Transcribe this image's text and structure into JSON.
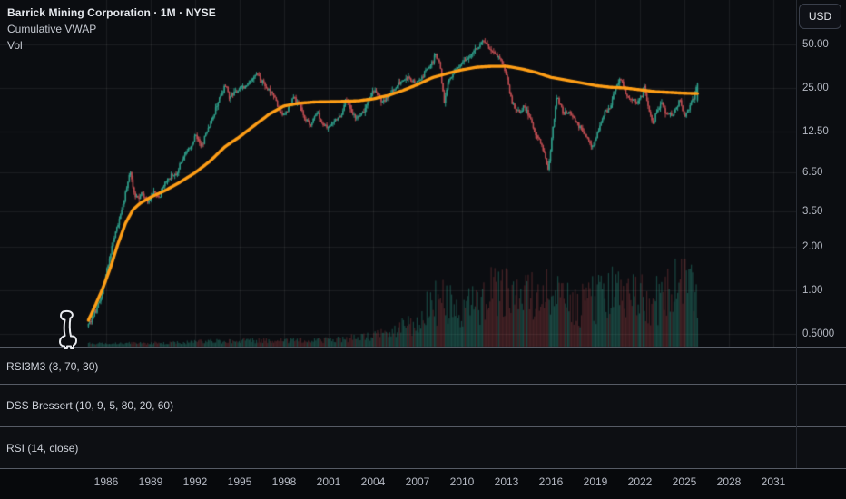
{
  "header": {
    "symbol_title": "Barrick Mining Corporation · 1M · NYSE",
    "legend_lines": [
      "Cumulative VWAP",
      "Vol"
    ]
  },
  "price_axis": {
    "currency_label": "USD",
    "ticks": [
      {
        "text": "50.00",
        "value": 50
      },
      {
        "text": "25.00",
        "value": 25
      },
      {
        "text": "12.50",
        "value": 12.5
      },
      {
        "text": "6.50",
        "value": 6.5
      },
      {
        "text": "3.50",
        "value": 3.5
      },
      {
        "text": "2.00",
        "value": 2
      },
      {
        "text": "1.00",
        "value": 1
      },
      {
        "text": "0.5000",
        "value": 0.5
      }
    ]
  },
  "time_axis": {
    "ticks": [
      1986,
      1989,
      1992,
      1995,
      1998,
      2001,
      2004,
      2007,
      2010,
      2013,
      2016,
      2019,
      2022,
      2025,
      2028,
      2031
    ]
  },
  "indicator_panes": [
    {
      "label": "RSI3M3 (3, 70, 30)"
    },
    {
      "label": "DSS Bressert (10, 9, 5, 80, 20, 60)"
    },
    {
      "label": "RSI (14, close)"
    }
  ],
  "colors": {
    "background": "#0b0d11",
    "grid": "rgba(255,255,255,0.07)",
    "up": "#2f9e8a",
    "down": "#bf4d52",
    "vwap": "#ff9e16",
    "volume_up": "rgba(47,158,138,0.40)",
    "volume_down": "rgba(191,77,82,0.32)"
  },
  "chart_data": {
    "type": "candlestick",
    "title": "Barrick Mining Corporation · 1M · NYSE",
    "ylabel": "USD",
    "scale": "log",
    "interval": "1M",
    "x_range": [
      1984.6,
      2031.6
    ],
    "x_ticks": [
      1986,
      1989,
      1992,
      1995,
      1998,
      2001,
      2004,
      2007,
      2010,
      2013,
      2016,
      2019,
      2022,
      2025,
      2028,
      2031
    ],
    "y_ticks": [
      50,
      25,
      12.5,
      6.5,
      3.5,
      2,
      1,
      0.5
    ],
    "data_start_year": 1984.8,
    "data_end_year": 2025.85,
    "series": [
      {
        "name": "Price close anchors (year, USD)",
        "type": "candlestick",
        "points": [
          [
            1984.8,
            0.58
          ],
          [
            1985.1,
            0.66
          ],
          [
            1985.4,
            0.75
          ],
          [
            1985.7,
            0.95
          ],
          [
            1986.0,
            1.3
          ],
          [
            1986.3,
            1.8
          ],
          [
            1986.6,
            2.5
          ],
          [
            1987.0,
            3.4
          ],
          [
            1987.3,
            4.6
          ],
          [
            1987.6,
            7.0
          ],
          [
            1987.8,
            5.0
          ],
          [
            1988.0,
            4.2
          ],
          [
            1988.4,
            4.7
          ],
          [
            1988.8,
            4.1
          ],
          [
            1989.2,
            4.8
          ],
          [
            1989.6,
            4.4
          ],
          [
            1990.0,
            5.5
          ],
          [
            1990.4,
            6.2
          ],
          [
            1990.8,
            6.8
          ],
          [
            1991.2,
            8.6
          ],
          [
            1991.7,
            9.8
          ],
          [
            1992.0,
            11.8
          ],
          [
            1992.4,
            10.0
          ],
          [
            1992.8,
            12.5
          ],
          [
            1993.2,
            16.0
          ],
          [
            1993.6,
            21.0
          ],
          [
            1994.0,
            26.0
          ],
          [
            1994.3,
            21.5
          ],
          [
            1994.8,
            23.5
          ],
          [
            1995.2,
            25.0
          ],
          [
            1995.7,
            27.5
          ],
          [
            1996.1,
            31.5
          ],
          [
            1996.4,
            28.0
          ],
          [
            1996.8,
            25.0
          ],
          [
            1997.2,
            22.5
          ],
          [
            1997.6,
            18.5
          ],
          [
            1997.9,
            15.5
          ],
          [
            1998.2,
            17.5
          ],
          [
            1998.6,
            21.5
          ],
          [
            1999.0,
            19.5
          ],
          [
            1999.4,
            15.5
          ],
          [
            1999.8,
            13.8
          ],
          [
            2000.2,
            17.0
          ],
          [
            2000.6,
            14.0
          ],
          [
            2001.0,
            12.8
          ],
          [
            2001.4,
            14.5
          ],
          [
            2001.8,
            16.0
          ],
          [
            2002.2,
            20.5
          ],
          [
            2002.6,
            16.5
          ],
          [
            2003.0,
            15.2
          ],
          [
            2003.4,
            17.5
          ],
          [
            2003.8,
            21.5
          ],
          [
            2004.2,
            23.5
          ],
          [
            2004.6,
            20.0
          ],
          [
            2005.0,
            22.0
          ],
          [
            2005.4,
            24.5
          ],
          [
            2005.8,
            27.5
          ],
          [
            2006.2,
            30.5
          ],
          [
            2006.6,
            28.0
          ],
          [
            2007.0,
            27.0
          ],
          [
            2007.4,
            30.0
          ],
          [
            2007.8,
            36.0
          ],
          [
            2008.2,
            42.0
          ],
          [
            2008.5,
            37.0
          ],
          [
            2008.8,
            19.5
          ],
          [
            2009.1,
            28.0
          ],
          [
            2009.5,
            33.0
          ],
          [
            2009.9,
            36.5
          ],
          [
            2010.3,
            39.0
          ],
          [
            2010.7,
            44.0
          ],
          [
            2011.1,
            48.0
          ],
          [
            2011.4,
            52.0
          ],
          [
            2011.8,
            47.0
          ],
          [
            2012.2,
            42.0
          ],
          [
            2012.6,
            39.0
          ],
          [
            2013.0,
            30.0
          ],
          [
            2013.3,
            21.0
          ],
          [
            2013.6,
            17.5
          ],
          [
            2013.9,
            16.5
          ],
          [
            2014.2,
            18.5
          ],
          [
            2014.6,
            15.5
          ],
          [
            2015.0,
            11.5
          ],
          [
            2015.4,
            10.5
          ],
          [
            2015.8,
            6.6
          ],
          [
            2016.1,
            12.0
          ],
          [
            2016.4,
            21.5
          ],
          [
            2016.8,
            16.5
          ],
          [
            2017.2,
            17.0
          ],
          [
            2017.6,
            15.0
          ],
          [
            2018.0,
            13.0
          ],
          [
            2018.5,
            11.0
          ],
          [
            2018.8,
            9.8
          ],
          [
            2019.2,
            12.5
          ],
          [
            2019.6,
            17.0
          ],
          [
            2020.0,
            18.5
          ],
          [
            2020.4,
            26.0
          ],
          [
            2020.7,
            29.5
          ],
          [
            2021.0,
            23.5
          ],
          [
            2021.4,
            21.5
          ],
          [
            2021.8,
            19.5
          ],
          [
            2022.1,
            22.0
          ],
          [
            2022.3,
            25.5
          ],
          [
            2022.6,
            17.5
          ],
          [
            2022.9,
            14.5
          ],
          [
            2023.2,
            18.0
          ],
          [
            2023.5,
            19.5
          ],
          [
            2023.8,
            16.5
          ],
          [
            2024.1,
            16.2
          ],
          [
            2024.4,
            17.2
          ],
          [
            2024.7,
            20.5
          ],
          [
            2025.0,
            16.5
          ],
          [
            2025.3,
            18.5
          ],
          [
            2025.6,
            21.0
          ],
          [
            2025.85,
            26.5
          ]
        ],
        "last_candle": {
          "open": 20.5,
          "close": 26.8,
          "high": 27.3,
          "low": 20.0
        }
      },
      {
        "name": "Cumulative VWAP",
        "type": "line",
        "points": [
          [
            1984.8,
            0.62
          ],
          [
            1985.3,
            0.8
          ],
          [
            1985.8,
            1.05
          ],
          [
            1986.3,
            1.45
          ],
          [
            1986.8,
            2.1
          ],
          [
            1987.3,
            2.9
          ],
          [
            1987.8,
            3.6
          ],
          [
            1988.3,
            4.0
          ],
          [
            1989.0,
            4.4
          ],
          [
            1990.0,
            4.9
          ],
          [
            1991.0,
            5.6
          ],
          [
            1992.0,
            6.5
          ],
          [
            1993.0,
            7.8
          ],
          [
            1994.0,
            9.8
          ],
          [
            1995.0,
            11.5
          ],
          [
            1996.0,
            13.8
          ],
          [
            1997.0,
            16.5
          ],
          [
            1998.0,
            18.8
          ],
          [
            1999.0,
            19.6
          ],
          [
            2000.0,
            20.0
          ],
          [
            2001.0,
            20.1
          ],
          [
            2002.0,
            20.2
          ],
          [
            2003.0,
            20.4
          ],
          [
            2004.0,
            21.0
          ],
          [
            2005.0,
            22.2
          ],
          [
            2006.0,
            24.0
          ],
          [
            2007.0,
            26.4
          ],
          [
            2008.0,
            29.5
          ],
          [
            2009.0,
            31.5
          ],
          [
            2010.0,
            33.4
          ],
          [
            2011.0,
            34.8
          ],
          [
            2012.0,
            35.3
          ],
          [
            2013.0,
            35.3
          ],
          [
            2014.0,
            33.9
          ],
          [
            2015.0,
            32.0
          ],
          [
            2016.0,
            29.6
          ],
          [
            2017.0,
            28.4
          ],
          [
            2018.0,
            27.2
          ],
          [
            2019.0,
            26.0
          ],
          [
            2020.0,
            25.3
          ],
          [
            2021.0,
            25.0
          ],
          [
            2022.0,
            24.3
          ],
          [
            2023.0,
            23.6
          ],
          [
            2024.0,
            23.3
          ],
          [
            2025.0,
            23.0
          ],
          [
            2025.85,
            22.9
          ]
        ]
      },
      {
        "name": "Vol",
        "type": "histogram",
        "rel_points": [
          [
            1984.8,
            0.025
          ],
          [
            1988.0,
            0.03
          ],
          [
            1991.0,
            0.035
          ],
          [
            1993.0,
            0.05
          ],
          [
            1995.0,
            0.06
          ],
          [
            1997.0,
            0.06
          ],
          [
            1999.0,
            0.06
          ],
          [
            2001.0,
            0.07
          ],
          [
            2003.0,
            0.09
          ],
          [
            2005.0,
            0.13
          ],
          [
            2006.0,
            0.2
          ],
          [
            2007.0,
            0.28
          ],
          [
            2008.0,
            0.5
          ],
          [
            2009.0,
            0.52
          ],
          [
            2010.0,
            0.45
          ],
          [
            2011.0,
            0.5
          ],
          [
            2012.0,
            0.58
          ],
          [
            2013.0,
            0.62
          ],
          [
            2014.0,
            0.5
          ],
          [
            2015.0,
            0.55
          ],
          [
            2016.0,
            0.72
          ],
          [
            2017.0,
            0.5
          ],
          [
            2018.0,
            0.45
          ],
          [
            2019.0,
            0.52
          ],
          [
            2020.0,
            0.6
          ],
          [
            2021.0,
            0.5
          ],
          [
            2022.0,
            0.58
          ],
          [
            2023.0,
            0.5
          ],
          [
            2024.0,
            0.62
          ],
          [
            2025.0,
            0.78
          ],
          [
            2025.85,
            0.7
          ]
        ]
      }
    ]
  }
}
